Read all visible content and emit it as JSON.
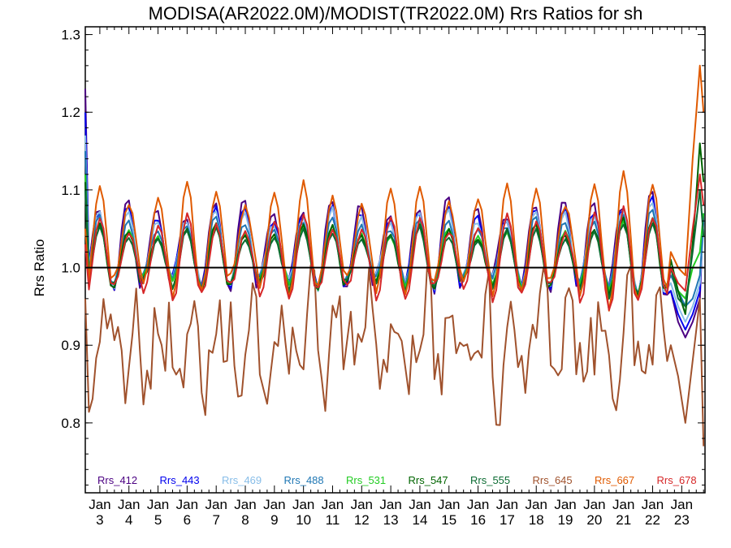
{
  "chart_data": {
    "type": "line",
    "title": "MODISA(AR2022.0M)/MODIST(TR2022.0M)  Rrs Ratios for sh",
    "xlabel": "",
    "ylabel": "Rrs Ratio",
    "ylim": [
      0.71,
      1.31
    ],
    "yticks": [
      0.8,
      0.9,
      1.0,
      1.1,
      1.2,
      1.3
    ],
    "ytick_labels": [
      "0.8",
      "0.9",
      "1.0",
      "1.1",
      "1.2",
      "1.3"
    ],
    "xlim": [
      2.5,
      23.8
    ],
    "xticks": [
      3,
      4,
      5,
      6,
      7,
      8,
      9,
      10,
      11,
      12,
      13,
      14,
      15,
      16,
      17,
      18,
      19,
      20,
      21,
      22,
      23
    ],
    "xtick_labels": [
      {
        "month": "Jan",
        "day": "3"
      },
      {
        "month": "Jan",
        "day": "4"
      },
      {
        "month": "Jan",
        "day": "5"
      },
      {
        "month": "Jan",
        "day": "6"
      },
      {
        "month": "Jan",
        "day": "7"
      },
      {
        "month": "Jan",
        "day": "8"
      },
      {
        "month": "Jan",
        "day": "9"
      },
      {
        "month": "Jan",
        "day": "10"
      },
      {
        "month": "Jan",
        "day": "11"
      },
      {
        "month": "Jan",
        "day": "12"
      },
      {
        "month": "Jan",
        "day": "13"
      },
      {
        "month": "Jan",
        "day": "14"
      },
      {
        "month": "Jan",
        "day": "15"
      },
      {
        "month": "Jan",
        "day": "16"
      },
      {
        "month": "Jan",
        "day": "17"
      },
      {
        "month": "Jan",
        "day": "18"
      },
      {
        "month": "Jan",
        "day": "19"
      },
      {
        "month": "Jan",
        "day": "20"
      },
      {
        "month": "Jan",
        "day": "21"
      },
      {
        "month": "Jan",
        "day": "22"
      },
      {
        "month": "Jan",
        "day": "23"
      }
    ],
    "reference_line": {
      "y": 1.0,
      "color": "#000000"
    },
    "grid": false,
    "legend_placement": "bottom",
    "series": [
      {
        "name": "Rrs_412",
        "color": "#4b0082",
        "amp": 0.05,
        "base": 1.028,
        "phase": 0.0,
        "first": 1.23,
        "last": 1.07,
        "tail": [
          0.97,
          0.93,
          0.91,
          0.93,
          0.96
        ]
      },
      {
        "name": "Rrs_443",
        "color": "#0000ee",
        "amp": 0.045,
        "base": 1.025,
        "phase": 0.01,
        "first": 1.2,
        "last": 1.07,
        "tail": [
          0.97,
          0.94,
          0.92,
          0.94,
          0.97
        ]
      },
      {
        "name": "Rrs_469",
        "color": "#87bde8",
        "amp": 0.042,
        "base": 1.024,
        "phase": 0.02,
        "first": 1.17,
        "last": 1.05,
        "tail": [
          0.98,
          0.95,
          0.93,
          0.95,
          0.98
        ]
      },
      {
        "name": "Rrs_488",
        "color": "#1f77b4",
        "amp": 0.038,
        "base": 1.02,
        "phase": 0.02,
        "first": 1.15,
        "last": 1.06,
        "tail": [
          0.99,
          0.97,
          0.95,
          0.96,
          0.99
        ]
      },
      {
        "name": "Rrs_531",
        "color": "#22cc22",
        "amp": 0.034,
        "base": 1.014,
        "phase": 0.03,
        "first": 1.12,
        "last": 1.07,
        "tail": [
          1.0,
          0.97,
          0.96,
          1.0,
          1.02
        ]
      },
      {
        "name": "Rrs_547",
        "color": "#006400",
        "amp": 0.036,
        "base": 1.012,
        "phase": 0.03,
        "first": 1.11,
        "last": 1.11,
        "tail": [
          1.01,
          0.97,
          0.94,
          1.03,
          1.16
        ]
      },
      {
        "name": "Rrs_555",
        "color": "#0b6b32",
        "amp": 0.033,
        "base": 1.01,
        "phase": 0.04,
        "first": 1.1,
        "last": 1.04,
        "tail": [
          1.0,
          0.96,
          0.95,
          1.02,
          1.1
        ]
      },
      {
        "name": "Rrs_645",
        "color": "#a0522d",
        "amp": 0.045,
        "base": 0.905,
        "phase": 0.25,
        "first": 0.96,
        "last": 0.77,
        "noise": 0.045,
        "tail": [
          0.9,
          0.86,
          0.8,
          0.88,
          0.96
        ]
      },
      {
        "name": "Rrs_667",
        "color": "#e05a00",
        "amp": 0.06,
        "base": 1.035,
        "phase": 0.05,
        "first": 1.05,
        "last": 1.2,
        "tail": [
          1.02,
          1.0,
          0.99,
          1.14,
          1.26
        ]
      },
      {
        "name": "Rrs_678",
        "color": "#d62728",
        "amp": 0.045,
        "base": 1.012,
        "phase": 0.06,
        "first": 1.03,
        "last": 1.08,
        "tail": [
          1.0,
          0.98,
          0.97,
          1.05,
          1.12
        ]
      }
    ]
  }
}
